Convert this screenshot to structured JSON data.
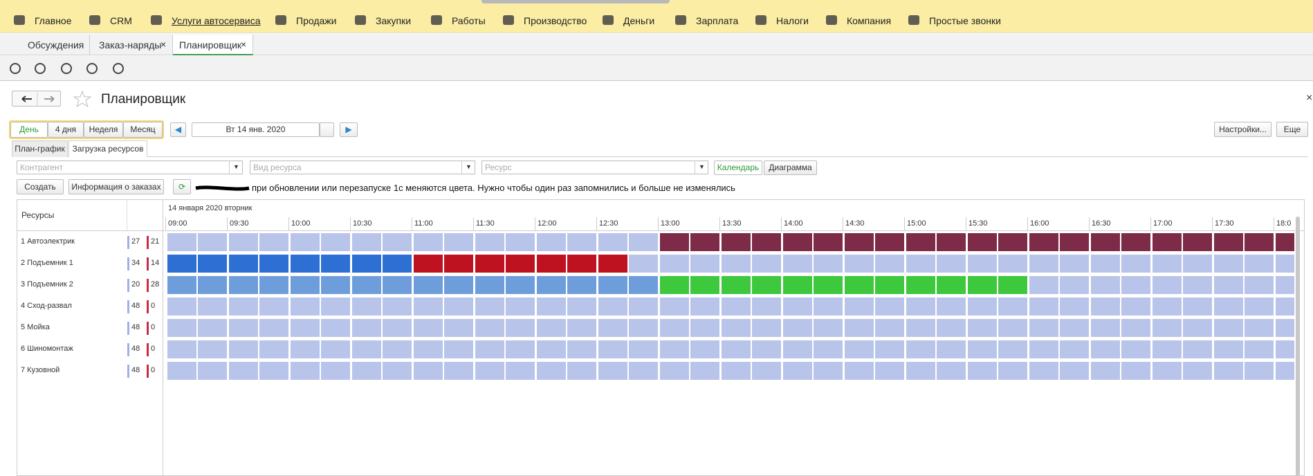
{
  "menu": [
    "Главное",
    "CRM",
    "Услуги автосервиса",
    "Продажи",
    "Закупки",
    "Работы",
    "Производство",
    "Деньги",
    "Зарплата",
    "Налоги",
    "Компания",
    "Простые звонки"
  ],
  "tabs": [
    "Обсуждения",
    "Заказ-наряды",
    "Планировщик"
  ],
  "page_title": "Планировщик",
  "period_buttons": [
    "День",
    "4 дня",
    "Неделя",
    "Месяц"
  ],
  "date": "Вт 14 янв. 2020",
  "settings_button": "Настройки...",
  "more_button": "Еще",
  "view_tabs": [
    "План-график",
    "Загрузка ресурсов"
  ],
  "filters": [
    "Контрагент",
    "Вид ресурса",
    "Ресурс"
  ],
  "mode_buttons": [
    "Календарь",
    "Диаграмма"
  ],
  "actions": [
    "Создать",
    "Информация о заказах"
  ],
  "note": "при обновлении или перезапуске 1с меняются цвета. Нужно чтобы один раз запомнились и больше не изменялись",
  "grid": {
    "resources_header": "Ресурсы",
    "date_header": "14 января 2020 вторник",
    "times": [
      "09:00",
      "09:30",
      "10:00",
      "10:30",
      "11:00",
      "11:30",
      "12:00",
      "12:30",
      "13:00",
      "13:30",
      "14:00",
      "14:30",
      "15:00",
      "15:30",
      "16:00",
      "16:30",
      "17:00",
      "17:30",
      "18:0"
    ],
    "resources": [
      {
        "name": "1 Автоэлектрик",
        "free": 27,
        "busy": 21
      },
      {
        "name": "2 Подъемник 1",
        "free": 34,
        "busy": 14
      },
      {
        "name": "3 Подъемник 2",
        "free": 20,
        "busy": 28
      },
      {
        "name": "4 Сход-развал",
        "free": 48,
        "busy": 0
      },
      {
        "name": "5 Мойка",
        "free": 48,
        "busy": 0
      },
      {
        "name": "6 Шиномонтаж",
        "free": 48,
        "busy": 0
      },
      {
        "name": "7 Кузовной",
        "free": 48,
        "busy": 0
      }
    ]
  }
}
